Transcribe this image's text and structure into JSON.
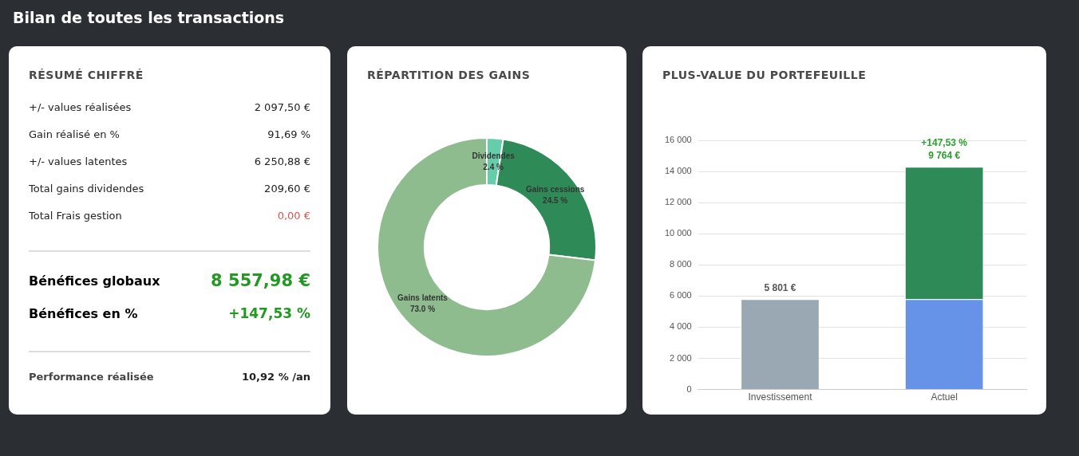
{
  "chart_data": [
    {
      "type": "other",
      "title": "Bilan de toutes les transactions"
    },
    {
      "type": "other",
      "title": "RÉSUMÉ CHIFFRÉ",
      "annotations": [
        "+/- values réalisées",
        "2 097,50 €",
        "Gain réalisé en %",
        "91,69 %",
        "+/- values latentes",
        "6 250,88 €",
        "Total gains dividendes",
        "209,60 €",
        "Total Frais gestion",
        "0,00 €",
        "Bénéfices globaux",
        "8 557,98 €",
        "Bénéfices en %",
        "+147,53 %",
        "Performance réalisée",
        "10,92 % /an"
      ]
    },
    {
      "type": "donut",
      "title": "RÉPARTITION DES GAINS",
      "categories": [
        "Dividendes",
        "Gains cessions",
        "Gains latents"
      ],
      "values": [
        2.4,
        24.5,
        73.0
      ],
      "colors": [
        "#66cdaa",
        "#2e8b57",
        "#8fbc8f"
      ],
      "value_labels": [
        "2.4 %",
        "24.5 %",
        "73.0 %"
      ]
    },
    {
      "type": "bar",
      "title": "PLUS-VALUE DU PORTEFEUILLE",
      "categories": [
        "Investissement",
        "Actuel"
      ],
      "stacked": true,
      "grid": "y",
      "ylim": [
        0,
        16000
      ],
      "yticks": [
        {
          "value": 0,
          "label": "0"
        },
        {
          "value": 2000,
          "label": "2 000"
        },
        {
          "value": 4000,
          "label": "4 000"
        },
        {
          "value": 6000,
          "label": "6 000"
        },
        {
          "value": 8000,
          "label": "8 000"
        },
        {
          "value": 10000,
          "label": "10 000"
        },
        {
          "value": 12000,
          "label": "12 000"
        },
        {
          "value": 14000,
          "label": "14 000"
        },
        {
          "value": 16000,
          "label": "16 000"
        }
      ],
      "series": [
        {
          "color": "#9aa8b4",
          "values": [
            5801,
            null
          ],
          "value_labels": [
            "5 801 €",
            null
          ]
        },
        {
          "color": "#6693e8",
          "values": [
            null,
            5800
          ]
        },
        {
          "color": "#2e8b57",
          "values": [
            null,
            8500
          ]
        }
      ],
      "annotations": [
        "+147,53 %",
        "9 764 €"
      ]
    }
  ]
}
